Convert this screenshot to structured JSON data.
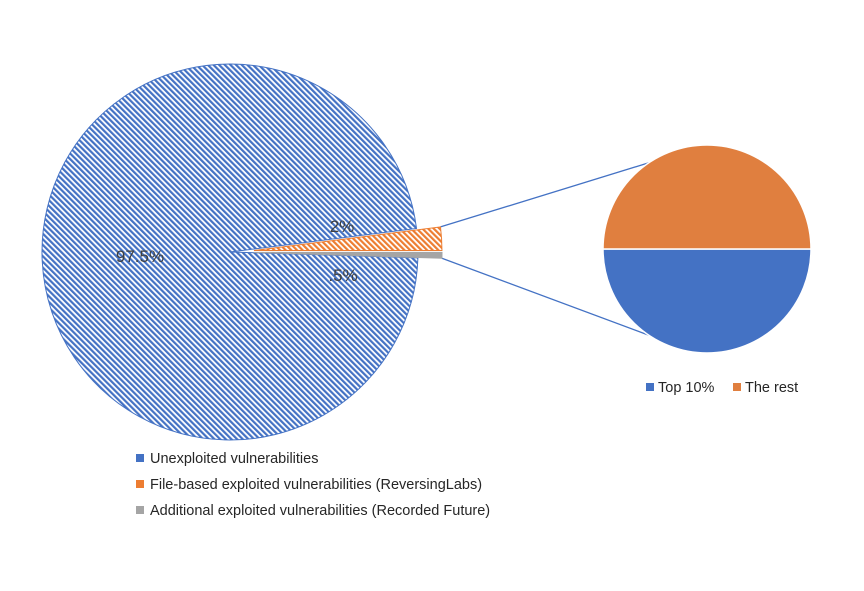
{
  "chart_data": {
    "type": "pie",
    "subtype": "pie-of-pie",
    "colors": {
      "unexploited": "#4472C4",
      "file_based": "#ED7D31",
      "additional": "#A5A5A5",
      "top10": "#4472C4",
      "the_rest": "#E07F3F",
      "connector": "#4472C4"
    },
    "main_pie": {
      "slices": [
        {
          "key": "unexploited",
          "name": "Unexploited vulnerabilities",
          "value": 97.5,
          "label": "97.5%",
          "pattern": "diagonal-hatch"
        },
        {
          "key": "file_based",
          "name": "File-based exploited vulnerabilities (ReversingLabs)",
          "value": 2,
          "label": "2%",
          "pattern": "diagonal-hatch",
          "exploded": true
        },
        {
          "key": "additional",
          "name": "Additional exploited vulnerabilities (Recorded Future)",
          "value": 0.5,
          "label": ".5%",
          "pattern": "solid",
          "exploded": true
        }
      ],
      "legend_position": "bottom"
    },
    "secondary_pie": {
      "slices": [
        {
          "key": "top10",
          "name": "Top 10%",
          "value": 50
        },
        {
          "key": "the_rest",
          "name": "The rest",
          "value": 50
        }
      ],
      "legend_position": "bottom"
    }
  }
}
